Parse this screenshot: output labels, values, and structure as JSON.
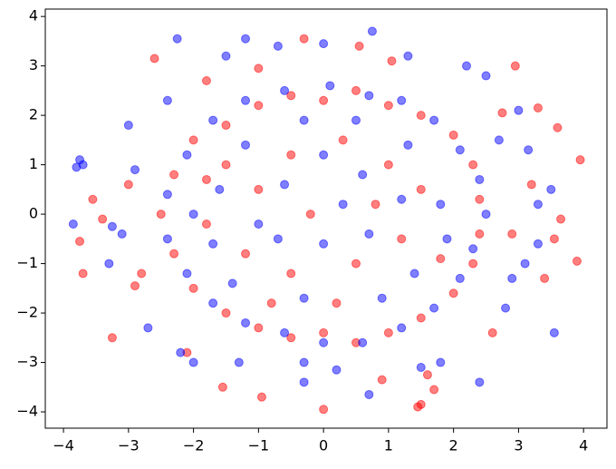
{
  "chart_data": {
    "type": "scatter",
    "xlim": [
      -4.28,
      4.36
    ],
    "ylim": [
      -4.33,
      4.15
    ],
    "xticks": [
      {
        "value": -4,
        "label": "−4"
      },
      {
        "value": -3,
        "label": "−3"
      },
      {
        "value": -2,
        "label": "−2"
      },
      {
        "value": -1,
        "label": "−1"
      },
      0,
      1,
      2,
      3,
      4
    ],
    "yticks": [
      {
        "value": -4,
        "label": "−4"
      },
      {
        "value": -3,
        "label": "−3"
      },
      {
        "value": -2,
        "label": "−2"
      },
      {
        "value": -1,
        "label": "−1"
      },
      0,
      1,
      2,
      3,
      4
    ],
    "grid": false,
    "series": [
      {
        "color": "#ff0000",
        "x": [
          -3.7,
          -3.75,
          -3.25,
          -3.55,
          -2.6,
          -1.55,
          -0.95,
          0.0,
          1.5,
          1.45,
          3.95,
          3.9,
          3.65,
          3.4,
          3.55,
          3.3,
          2.95,
          -0.3,
          0.55,
          1.05,
          2.6,
          1.7,
          -2.1,
          -2.9,
          -3.0,
          3.6,
          2.75,
          -1.0,
          1.6,
          -3.4,
          3.2,
          -2.8,
          2.9,
          0.9,
          -1.8,
          -2.0,
          -1.5,
          -1.0,
          -0.5,
          0,
          0.5,
          1.0,
          1.5,
          2.0,
          2.3,
          2.4,
          2.4,
          2.3,
          2.0,
          1.5,
          1.0,
          0.5,
          0,
          -0.5,
          -1.0,
          -1.5,
          -2.0,
          -2.3,
          -2.5,
          -2.3,
          -1.5,
          -1.0,
          -0.5,
          0.3,
          1.0,
          1.5,
          1.2,
          0.5,
          -0.5,
          -1.2,
          -1.8,
          0.8,
          -0.2,
          0.2,
          -0.8,
          1.8,
          -1.8
        ],
        "values": [
          -1.2,
          -0.55,
          -2.5,
          0.3,
          3.15,
          -3.5,
          -3.7,
          -3.95,
          -3.85,
          -3.9,
          1.1,
          -0.95,
          -0.1,
          -1.3,
          -0.5,
          2.15,
          3.0,
          3.55,
          3.4,
          3.1,
          -2.4,
          -3.55,
          -2.8,
          -1.45,
          0.6,
          1.75,
          2.05,
          2.95,
          -3.25,
          -0.1,
          0.6,
          -1.2,
          -0.4,
          -3.35,
          2.7,
          1.5,
          1.8,
          2.2,
          2.4,
          2.3,
          2.5,
          2.2,
          2.0,
          1.6,
          1.0,
          0.3,
          -0.4,
          -1.0,
          -1.6,
          -2.1,
          -2.4,
          -2.6,
          -2.4,
          -2.5,
          -2.3,
          -2.0,
          -1.5,
          -0.8,
          0,
          0.8,
          1.0,
          0.5,
          1.2,
          1.5,
          1.0,
          0.5,
          -0.5,
          -1.0,
          -1.2,
          -0.8,
          -0.2,
          0.2,
          0.0,
          -1.8,
          -1.8,
          -0.9,
          0.7
        ]
      },
      {
        "color": "#0000ff",
        "x": [
          -3.85,
          -3.75,
          -3.8,
          -3.7,
          -3.3,
          -3.25,
          -2.25,
          -2.0,
          -1.2,
          -0.7,
          0.75,
          0.0,
          3.0,
          3.15,
          3.55,
          2.4,
          0.7,
          -1.3,
          -0.3,
          3.3,
          3.5,
          2.8,
          -2.7,
          -3.0,
          1.5,
          2.5,
          3.3,
          -2.9,
          2.2,
          -2.2,
          -1.5,
          1.3,
          -0.3,
          0.2,
          1.8,
          2.7,
          -2.4,
          -3.1,
          3.1,
          2.9,
          -2.1,
          -1.7,
          -1.2,
          -0.6,
          0.1,
          0.7,
          1.2,
          1.7,
          2.1,
          2.4,
          2.5,
          2.3,
          2.1,
          1.7,
          1.2,
          0.6,
          0.0,
          -0.6,
          -1.2,
          -1.7,
          -2.1,
          -2.4,
          -2.4,
          -1.6,
          -1.2,
          -0.6,
          0.0,
          0.6,
          1.3,
          1.8,
          1.4,
          0.7,
          0.0,
          -0.7,
          -1.4,
          -0.3,
          0.9,
          -1.7,
          0.3,
          -1.0,
          1.2,
          -0.3,
          0.5,
          1.9,
          -2.0
        ],
        "values": [
          -0.2,
          1.1,
          0.95,
          1.0,
          -1.0,
          -0.25,
          3.55,
          -3.0,
          3.55,
          3.4,
          3.7,
          3.45,
          2.1,
          1.3,
          -2.4,
          -3.4,
          -3.65,
          -3.0,
          -3.4,
          0.2,
          0.5,
          -1.9,
          -2.3,
          1.8,
          -3.1,
          2.8,
          -0.6,
          0.9,
          3.0,
          -2.8,
          3.2,
          3.2,
          -3.0,
          -3.15,
          -3.0,
          1.5,
          2.3,
          -0.4,
          -1.0,
          -1.3,
          1.2,
          1.9,
          2.3,
          2.5,
          2.6,
          2.4,
          2.3,
          1.9,
          1.3,
          0.7,
          0.0,
          -0.7,
          -1.3,
          -1.9,
          -2.3,
          -2.6,
          -2.6,
          -2.4,
          -2.2,
          -1.8,
          -1.2,
          -0.5,
          0.4,
          0.5,
          1.4,
          0.6,
          1.2,
          0.8,
          1.4,
          0.2,
          -1.2,
          -0.4,
          -0.6,
          -0.5,
          -1.4,
          -1.7,
          -1.7,
          -0.6,
          0.2,
          -0.2,
          0.3,
          1.9,
          1.9,
          -0.5,
          0.0
        ]
      }
    ]
  }
}
